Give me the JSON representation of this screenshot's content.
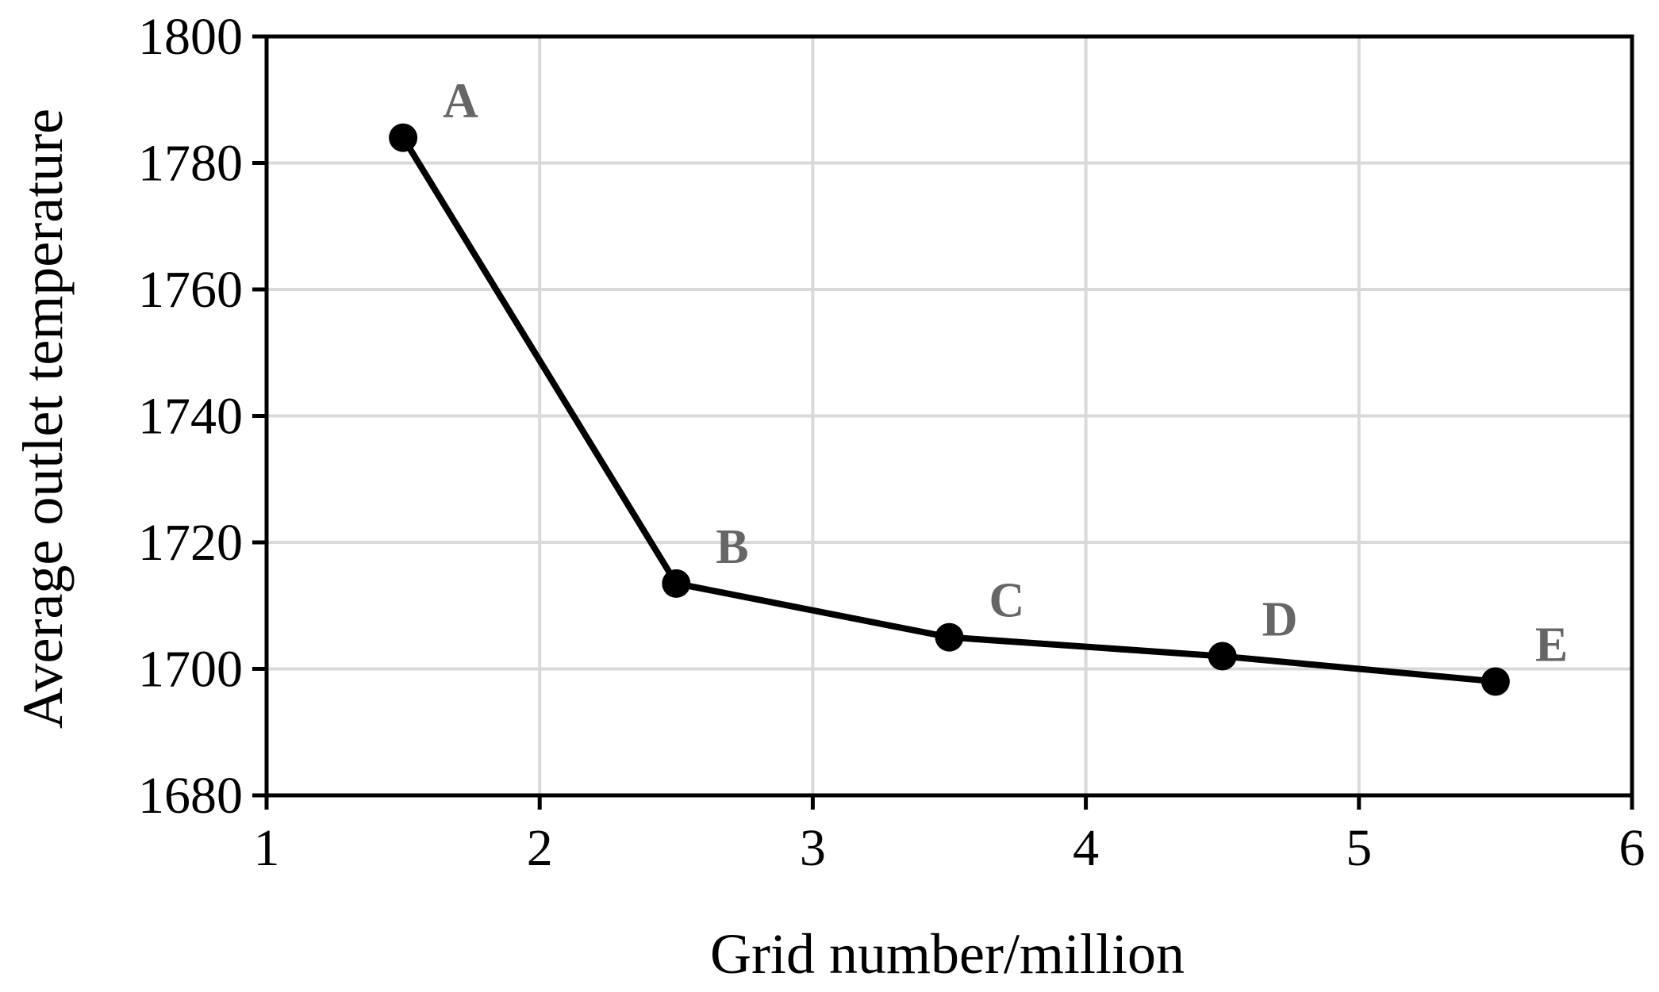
{
  "chart_data": {
    "type": "line",
    "title": "",
    "xlabel": "Grid number/million",
    "ylabel": "Average outlet temperature",
    "xlim": [
      1,
      6
    ],
    "ylim": [
      1680,
      1800
    ],
    "xticks": [
      1,
      2,
      3,
      4,
      5,
      6
    ],
    "yticks": [
      1680,
      1700,
      1720,
      1740,
      1760,
      1780,
      1800
    ],
    "grid": true,
    "legend": "none",
    "series": [
      {
        "x": [
          1.5,
          2.5,
          3.5,
          4.5,
          5.5
        ],
        "y": [
          1784,
          1713.5,
          1705,
          1702,
          1698
        ],
        "labels": [
          "A",
          "B",
          "C",
          "D",
          "E"
        ],
        "color": "#000000"
      }
    ],
    "colors": {
      "line": "#000000",
      "grid": "#d9d9d9",
      "point_label": "#666666",
      "frame": "#000000"
    }
  }
}
